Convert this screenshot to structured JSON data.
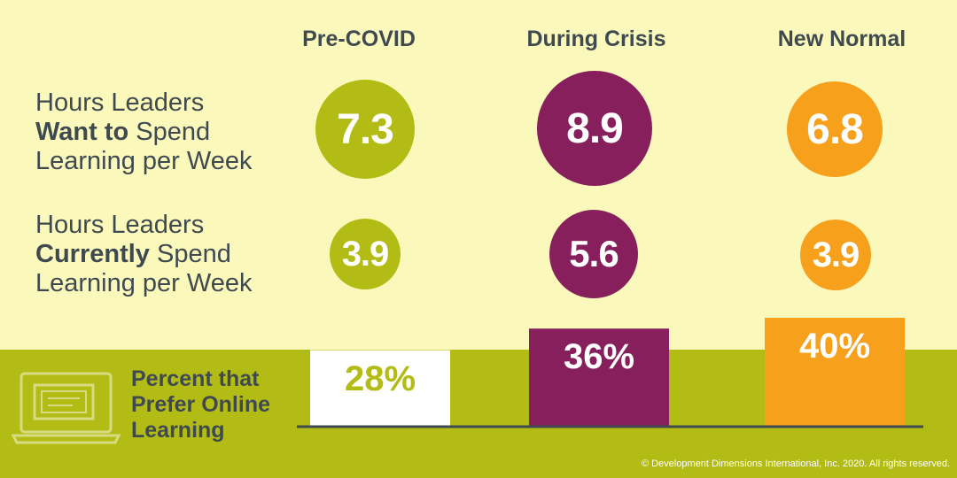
{
  "columns": [
    "Pre-COVID",
    "During Crisis",
    "New Normal"
  ],
  "rows": [
    {
      "label_before": "Hours Leaders",
      "label_bold": "Want to",
      "label_after": "Spend",
      "label_line3": "Learning per Week",
      "values": [
        "7.3",
        "8.9",
        "6.8"
      ]
    },
    {
      "label_before": "Hours Leaders",
      "label_bold": "Currently",
      "label_after": "Spend",
      "label_line3": "Learning per Week",
      "values": [
        "3.9",
        "5.6",
        "3.9"
      ]
    }
  ],
  "online": {
    "line1": "Percent that",
    "line2": "Prefer Online",
    "line3": "Learning"
  },
  "colors": {
    "pre": "#b3bc14",
    "during": "#861f5c",
    "new": "#f6a01b",
    "text": "#3f4a50",
    "background": "#fbf8bc"
  },
  "icons": {
    "laptop": "laptop-certificate-icon"
  },
  "chart_data": {
    "type": "bar",
    "categories": [
      "Pre-COVID",
      "During Crisis",
      "New Normal"
    ],
    "values": [
      28,
      36,
      40
    ],
    "value_labels": [
      "28%",
      "36%",
      "40%"
    ],
    "ylim": [
      0,
      40
    ]
  },
  "copyright": "© Development Dimensions International, Inc. 2020. All rights reserved."
}
